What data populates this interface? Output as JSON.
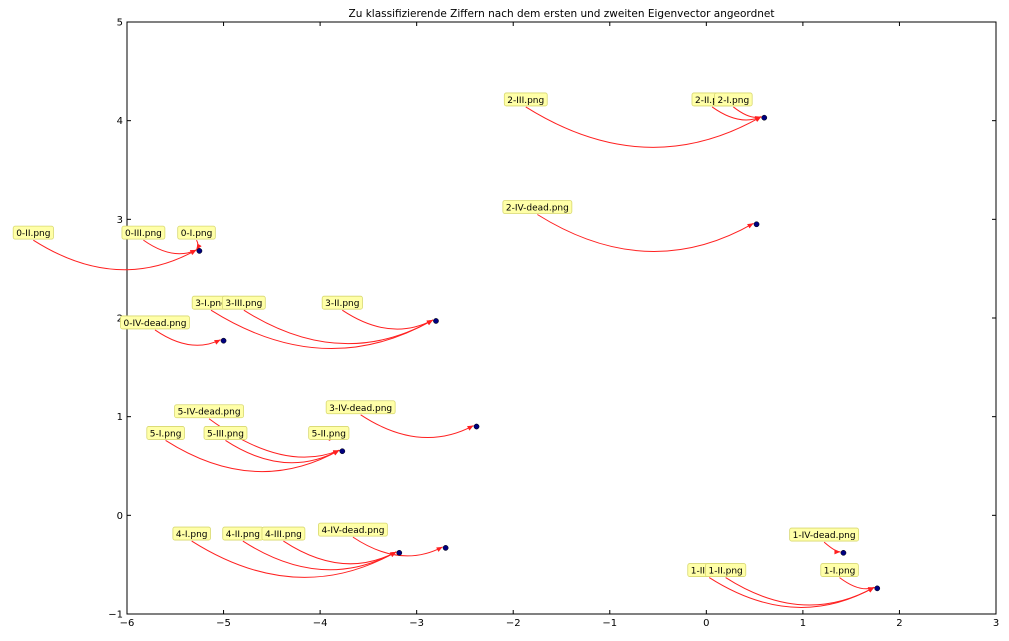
{
  "chart_data": {
    "type": "scatter",
    "title": "Zu klassifizierende Ziffern nach dem ersten und zweiten Eigenvector angeordnet",
    "xlabel": "",
    "ylabel": "",
    "xlim": [
      -6,
      3
    ],
    "ylim": [
      -1,
      5
    ],
    "xticks": [
      "−6",
      "−5",
      "−4",
      "−3",
      "−2",
      "−1",
      "0",
      "1",
      "2",
      "3"
    ],
    "yticks": [
      "−1",
      "0",
      "1",
      "2",
      "3",
      "4",
      "5"
    ],
    "grid": false,
    "point_color": "#000080",
    "arrow_color": "#ff2020",
    "label_box_color": "#ffffa8",
    "points": [
      {
        "x": 0.6,
        "y": 4.03
      },
      {
        "x": 0.52,
        "y": 2.95
      },
      {
        "x": -5.25,
        "y": 2.68
      },
      {
        "x": -2.8,
        "y": 1.97
      },
      {
        "x": -5.0,
        "y": 1.77
      },
      {
        "x": -2.38,
        "y": 0.9
      },
      {
        "x": -3.77,
        "y": 0.65
      },
      {
        "x": -3.75,
        "y": 0.85
      },
      {
        "x": -3.18,
        "y": -0.38
      },
      {
        "x": -2.7,
        "y": -0.33
      },
      {
        "x": 1.42,
        "y": -0.38
      },
      {
        "x": 1.77,
        "y": -0.74
      }
    ],
    "annotations": [
      {
        "text": "2-III.png",
        "label_x": -1.87,
        "label_y": 4.21,
        "target": 0
      },
      {
        "text": "2-II.png",
        "label_x": 0.06,
        "label_y": 4.21,
        "target": 0
      },
      {
        "text": "2-I.png",
        "label_x": 0.28,
        "label_y": 4.21,
        "target": 0
      },
      {
        "text": "2-IV-dead.png",
        "label_x": -1.75,
        "label_y": 3.12,
        "target": 1
      },
      {
        "text": "0-II.png",
        "label_x": -6.97,
        "label_y": 2.86,
        "target": 2
      },
      {
        "text": "0-III.png",
        "label_x": -5.83,
        "label_y": 2.86,
        "target": 2
      },
      {
        "text": "0-I.png",
        "label_x": -5.28,
        "label_y": 2.86,
        "target": 2
      },
      {
        "text": "3-I.png",
        "label_x": -5.13,
        "label_y": 2.15,
        "target": 3
      },
      {
        "text": "3-III.png",
        "label_x": -4.79,
        "label_y": 2.15,
        "target": 3
      },
      {
        "text": "3-II.png",
        "label_x": -3.77,
        "label_y": 2.15,
        "target": 3
      },
      {
        "text": "0-IV-dead.png",
        "label_x": -5.71,
        "label_y": 1.95,
        "target": 4
      },
      {
        "text": "3-IV-dead.png",
        "label_x": -3.58,
        "label_y": 1.09,
        "target": 5
      },
      {
        "text": "5-IV-dead.png",
        "label_x": -5.15,
        "label_y": 1.05,
        "target": 6
      },
      {
        "text": "5-I.png",
        "label_x": -5.6,
        "label_y": 0.83,
        "target": 6
      },
      {
        "text": "5-III.png",
        "label_x": -4.98,
        "label_y": 0.83,
        "target": 6
      },
      {
        "text": "5-II.png",
        "label_x": -3.91,
        "label_y": 0.83,
        "target": 7
      },
      {
        "text": "4-I.png",
        "label_x": -5.33,
        "label_y": -0.19,
        "target": 8
      },
      {
        "text": "4-II.png",
        "label_x": -4.8,
        "label_y": -0.19,
        "target": 8
      },
      {
        "text": "4-III.png",
        "label_x": -4.38,
        "label_y": -0.19,
        "target": 8
      },
      {
        "text": "4-IV-dead.png",
        "label_x": -3.66,
        "label_y": -0.15,
        "target": 9
      },
      {
        "text": "1-IV-dead.png",
        "label_x": 1.22,
        "label_y": -0.2,
        "target": 10
      },
      {
        "text": "1-III.png",
        "label_x": 0.03,
        "label_y": -0.56,
        "target": 11
      },
      {
        "text": "1-II.png",
        "label_x": 0.2,
        "label_y": -0.56,
        "target": 11
      },
      {
        "text": "1-I.png",
        "label_x": 1.38,
        "label_y": -0.56,
        "target": 11
      }
    ]
  }
}
